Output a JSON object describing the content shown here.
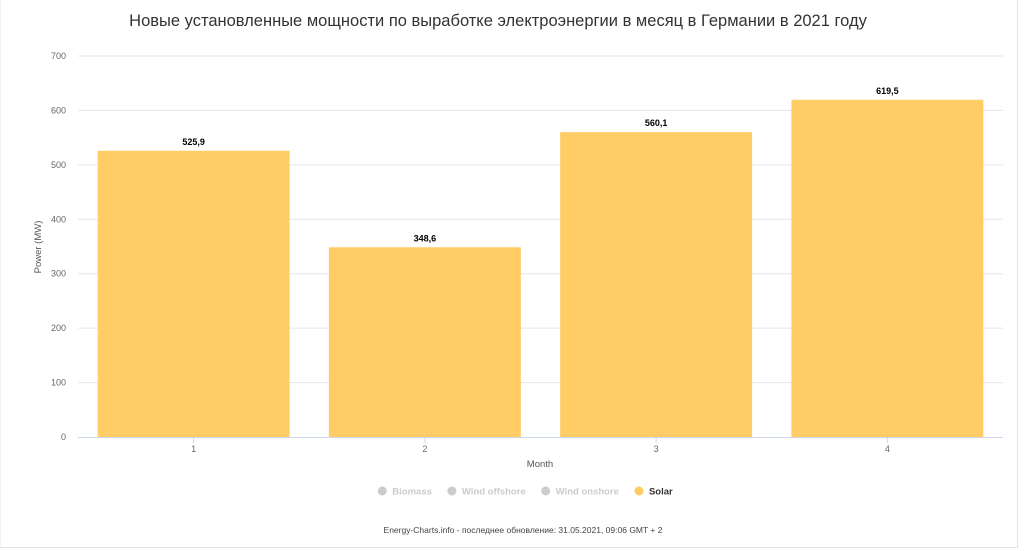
{
  "chart_data": {
    "type": "bar",
    "title": "Новые установленные мощности по выработке электроэнергии в месяц в Германии в 2021 году",
    "xlabel": "Month",
    "ylabel": "Power (MW)",
    "categories": [
      "1",
      "2",
      "3",
      "4"
    ],
    "ylim": [
      0,
      700
    ],
    "yticks": [
      "0",
      "100",
      "200",
      "300",
      "400",
      "500",
      "600",
      "700"
    ],
    "ytick_values": [
      0,
      100,
      200,
      300,
      400,
      500,
      600,
      700
    ],
    "grid": true,
    "legend_position": "bottom",
    "series": [
      {
        "name": "Solar",
        "values": [
          525.9,
          348.6,
          560.1,
          619.5
        ],
        "labels": [
          "525,9",
          "348,6",
          "560,1",
          "619,5"
        ],
        "color": "#FFCC66"
      }
    ],
    "legend": [
      {
        "name": "Biomass",
        "active": false,
        "color": "#cccccc"
      },
      {
        "name": "Wind offshore",
        "active": false,
        "color": "#cccccc"
      },
      {
        "name": "Wind onshore",
        "active": false,
        "color": "#cccccc"
      },
      {
        "name": "Solar",
        "active": true,
        "color": "#FFCC66"
      }
    ]
  },
  "credits": "Energy-Charts.info - последнее обновление: 31.05.2021, 09:06 GMT + 2",
  "colors": {
    "grid": "#e6e6e6",
    "axis": "#ccd6eb",
    "legend_inactive_text": "#cccccc",
    "legend_active_text": "#333333"
  }
}
